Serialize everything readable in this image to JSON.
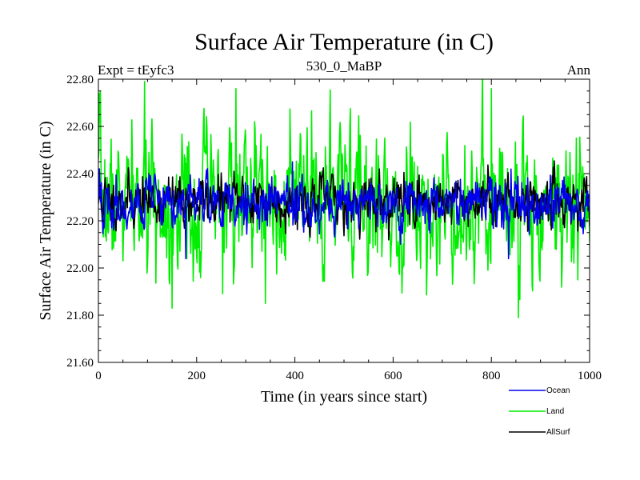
{
  "chart_data": {
    "type": "line",
    "title": "Surface Air Temperature (in C)",
    "subtitle_left": "Expt = tEyfc3",
    "subtitle_center": "530_0_MaBP",
    "subtitle_right": "Ann",
    "xlabel": "Time (in years since start)",
    "ylabel": "Surface Air Temperature (in C)",
    "xlim": [
      0,
      1000
    ],
    "ylim": [
      21.6,
      22.8
    ],
    "x_ticks": [
      0,
      200,
      400,
      600,
      800,
      1000
    ],
    "x_tick_labels": [
      "0",
      "200",
      "400",
      "600",
      "800",
      "1000"
    ],
    "y_ticks": [
      21.6,
      21.8,
      22.0,
      22.2,
      22.4,
      22.6,
      22.8
    ],
    "y_tick_labels": [
      "21.60",
      "21.80",
      "22.00",
      "22.20",
      "22.40",
      "22.60",
      "22.80"
    ],
    "n_years": 1000,
    "series": [
      {
        "name": "Land",
        "color": "#00ee00",
        "mean": 22.28,
        "sd": 0.15,
        "seed": 7,
        "annotated_points": [
          {
            "x": 2,
            "y": 22.74
          },
          {
            "x": 150,
            "y": 21.83
          },
          {
            "x": 180,
            "y": 22.04
          },
          {
            "x": 280,
            "y": 22.76
          },
          {
            "x": 340,
            "y": 21.85
          },
          {
            "x": 800,
            "y": 22.76
          },
          {
            "x": 855,
            "y": 21.79
          }
        ]
      },
      {
        "name": "AllSurf",
        "color": "#000000",
        "mean": 22.285,
        "sd": 0.055,
        "seed": 11,
        "annotated_points": []
      },
      {
        "name": "Ocean",
        "color": "#0000ee",
        "mean": 22.275,
        "sd": 0.055,
        "seed": 19,
        "annotated_points": [
          {
            "x": 2,
            "y": 22.42
          },
          {
            "x": 178,
            "y": 22.04
          },
          {
            "x": 395,
            "y": 22.45
          },
          {
            "x": 835,
            "y": 22.04
          }
        ]
      }
    ],
    "legend": {
      "placement": "bottom-right",
      "entries": [
        {
          "label": "Ocean",
          "color": "#0000ee"
        },
        {
          "label": "Land",
          "color": "#00ee00"
        },
        {
          "label": "AllSurf",
          "color": "#000000"
        }
      ]
    }
  }
}
